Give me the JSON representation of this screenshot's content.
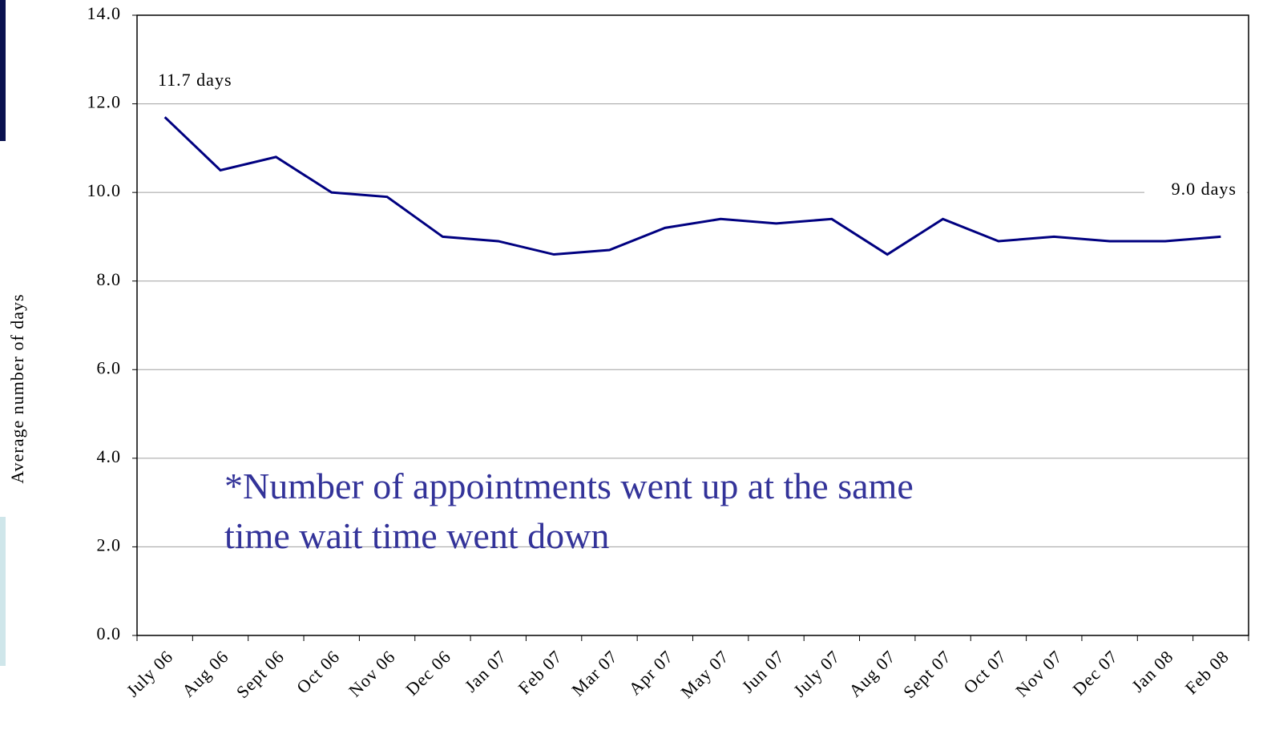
{
  "chart_data": {
    "type": "line",
    "y_axis_label": "Average number of days",
    "categories": [
      "July 06",
      "Aug 06",
      "Sept 06",
      "Oct 06",
      "Nov 06",
      "Dec 06",
      "Jan 07",
      "Feb 07",
      "Mar 07",
      "Apr 07",
      "May 07",
      "Jun 07",
      "July 07",
      "Aug 07",
      "Sept 07",
      "Oct 07",
      "Nov 07",
      "Dec 07",
      "Jan 08",
      "Feb 08"
    ],
    "series": [
      {
        "name": "Average number of days",
        "color": "#000080",
        "values": [
          11.7,
          10.5,
          10.8,
          10.0,
          9.9,
          9.0,
          8.9,
          8.6,
          8.7,
          9.2,
          9.4,
          9.3,
          9.4,
          8.6,
          9.4,
          8.9,
          9.0,
          8.9,
          8.9,
          9.0
        ]
      }
    ],
    "ylim": [
      0,
      14
    ],
    "yticks": [
      {
        "value": 0,
        "label": "0.0"
      },
      {
        "value": 2,
        "label": "2.0"
      },
      {
        "value": 4,
        "label": "4.0"
      },
      {
        "value": 6,
        "label": "6.0"
      },
      {
        "value": 8,
        "label": "8.0"
      },
      {
        "value": 10,
        "label": "10.0"
      },
      {
        "value": 12,
        "label": "12.0"
      },
      {
        "value": 14,
        "label": "14.0"
      }
    ],
    "grid": true,
    "start_label": "11.7 days",
    "end_label": "9.0 days",
    "note": [
      "*Number of appointments went up at the same",
      "time wait time went down"
    ]
  }
}
